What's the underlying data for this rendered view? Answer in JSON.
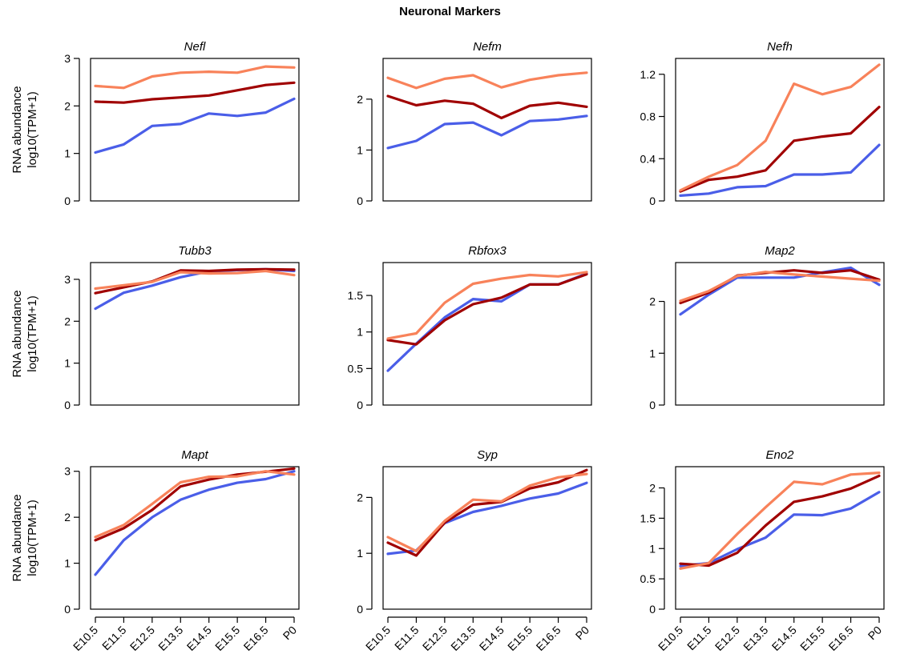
{
  "figure": {
    "title": "Neuronal Markers"
  },
  "colors": {
    "series_1": "#4a5ee8",
    "series_2": "#a00000",
    "series_3": "#f8825a"
  },
  "chart_data": [
    {
      "type": "line",
      "title": "Nefl",
      "ylabel": [
        "RNA abundance",
        "log10(TPM+1)"
      ],
      "xlabel": "",
      "categories": [
        "E10.5",
        "E11.5",
        "E12.5",
        "E13.5",
        "E14.5",
        "E15.5",
        "E16.5",
        "P0"
      ],
      "show_x_ticks": false,
      "ylim": [
        0,
        3.0
      ],
      "yticks": [
        0,
        1,
        2,
        3
      ],
      "ytick_labels": [
        "0",
        "1",
        "2",
        "3"
      ],
      "series": [
        {
          "color": "#4a5ee8",
          "values": [
            1.02,
            1.19,
            1.58,
            1.62,
            1.84,
            1.79,
            1.86,
            2.15
          ]
        },
        {
          "color": "#a00000",
          "values": [
            2.09,
            2.07,
            2.14,
            2.18,
            2.22,
            2.33,
            2.44,
            2.49
          ]
        },
        {
          "color": "#f8825a",
          "values": [
            2.42,
            2.38,
            2.62,
            2.7,
            2.72,
            2.7,
            2.83,
            2.81
          ]
        }
      ]
    },
    {
      "type": "line",
      "title": "Nefm",
      "ylabel": [],
      "xlabel": "",
      "categories": [
        "E10.5",
        "E11.5",
        "E12.5",
        "E13.5",
        "E14.5",
        "E15.5",
        "E16.5",
        "P0"
      ],
      "show_x_ticks": false,
      "ylim": [
        0,
        2.8
      ],
      "yticks": [
        0,
        1,
        2
      ],
      "ytick_labels": [
        "0",
        "1",
        "2"
      ],
      "series": [
        {
          "color": "#4a5ee8",
          "values": [
            1.04,
            1.18,
            1.51,
            1.54,
            1.29,
            1.57,
            1.6,
            1.67
          ]
        },
        {
          "color": "#a00000",
          "values": [
            2.06,
            1.88,
            1.97,
            1.91,
            1.63,
            1.87,
            1.93,
            1.85
          ]
        },
        {
          "color": "#f8825a",
          "values": [
            2.42,
            2.22,
            2.4,
            2.47,
            2.23,
            2.38,
            2.47,
            2.52
          ]
        }
      ]
    },
    {
      "type": "line",
      "title": "Nefh",
      "ylabel": [],
      "xlabel": "",
      "categories": [
        "E10.5",
        "E11.5",
        "E12.5",
        "E13.5",
        "E14.5",
        "E15.5",
        "E16.5",
        "P0"
      ],
      "show_x_ticks": false,
      "ylim": [
        0,
        1.35
      ],
      "yticks": [
        0,
        0.4,
        0.8,
        1.2
      ],
      "ytick_labels": [
        "0",
        "0.4",
        "0.8",
        "1.2"
      ],
      "series": [
        {
          "color": "#4a5ee8",
          "values": [
            0.05,
            0.07,
            0.13,
            0.14,
            0.25,
            0.25,
            0.27,
            0.53
          ]
        },
        {
          "color": "#a00000",
          "values": [
            0.09,
            0.2,
            0.23,
            0.29,
            0.57,
            0.61,
            0.64,
            0.89
          ]
        },
        {
          "color": "#f8825a",
          "values": [
            0.1,
            0.23,
            0.34,
            0.57,
            1.11,
            1.01,
            1.08,
            1.29
          ]
        }
      ]
    },
    {
      "type": "line",
      "title": "Tubb3",
      "ylabel": [
        "RNA abundance",
        "log10(TPM+1)"
      ],
      "xlabel": "",
      "categories": [
        "E10.5",
        "E11.5",
        "E12.5",
        "E13.5",
        "E14.5",
        "E15.5",
        "E16.5",
        "P0"
      ],
      "show_x_ticks": false,
      "ylim": [
        0,
        3.4
      ],
      "yticks": [
        0,
        1,
        2,
        3
      ],
      "ytick_labels": [
        "0",
        "1",
        "2",
        "3"
      ],
      "series": [
        {
          "color": "#4a5ee8",
          "values": [
            2.3,
            2.68,
            2.85,
            3.05,
            3.19,
            3.22,
            3.24,
            3.2
          ]
        },
        {
          "color": "#a00000",
          "values": [
            2.67,
            2.81,
            2.95,
            3.21,
            3.2,
            3.23,
            3.24,
            3.23
          ]
        },
        {
          "color": "#f8825a",
          "values": [
            2.78,
            2.86,
            2.94,
            3.17,
            3.14,
            3.15,
            3.2,
            3.1
          ]
        }
      ]
    },
    {
      "type": "line",
      "title": "Rbfox3",
      "ylabel": [],
      "xlabel": "",
      "categories": [
        "E10.5",
        "E11.5",
        "E12.5",
        "E13.5",
        "E14.5",
        "E15.5",
        "E16.5",
        "P0"
      ],
      "show_x_ticks": false,
      "ylim": [
        0,
        1.95
      ],
      "yticks": [
        0,
        0.5,
        1,
        1.5
      ],
      "ytick_labels": [
        "0",
        "0.5",
        "1",
        "1.5"
      ],
      "series": [
        {
          "color": "#4a5ee8",
          "values": [
            0.47,
            0.84,
            1.2,
            1.45,
            1.42,
            1.65,
            1.65,
            1.8
          ]
        },
        {
          "color": "#a00000",
          "values": [
            0.89,
            0.83,
            1.16,
            1.38,
            1.47,
            1.65,
            1.65,
            1.79
          ]
        },
        {
          "color": "#f8825a",
          "values": [
            0.91,
            0.98,
            1.4,
            1.66,
            1.73,
            1.78,
            1.76,
            1.82
          ]
        }
      ]
    },
    {
      "type": "line",
      "title": "Map2",
      "ylabel": [],
      "xlabel": "",
      "categories": [
        "E10.5",
        "E11.5",
        "E12.5",
        "E13.5",
        "E14.5",
        "E15.5",
        "E16.5",
        "P0"
      ],
      "show_x_ticks": false,
      "ylim": [
        0,
        2.75
      ],
      "yticks": [
        0,
        1,
        2
      ],
      "ytick_labels": [
        "0",
        "1",
        "2"
      ],
      "series": [
        {
          "color": "#4a5ee8",
          "values": [
            1.75,
            2.13,
            2.46,
            2.46,
            2.46,
            2.56,
            2.65,
            2.32
          ]
        },
        {
          "color": "#a00000",
          "values": [
            1.97,
            2.17,
            2.5,
            2.55,
            2.6,
            2.55,
            2.6,
            2.42
          ]
        },
        {
          "color": "#f8825a",
          "values": [
            2.01,
            2.2,
            2.49,
            2.57,
            2.52,
            2.48,
            2.44,
            2.4
          ]
        }
      ]
    },
    {
      "type": "line",
      "title": "Mapt",
      "ylabel": [
        "RNA abundance",
        "log10(TPM+1)"
      ],
      "xlabel": "",
      "categories": [
        "E10.5",
        "E11.5",
        "E12.5",
        "E13.5",
        "E14.5",
        "E15.5",
        "E16.5",
        "P0"
      ],
      "show_x_ticks": true,
      "ylim": [
        0,
        3.1
      ],
      "yticks": [
        0,
        1,
        2,
        3
      ],
      "ytick_labels": [
        "0",
        "1",
        "2",
        "3"
      ],
      "series": [
        {
          "color": "#4a5ee8",
          "values": [
            0.75,
            1.5,
            2.0,
            2.38,
            2.6,
            2.75,
            2.83,
            3.0
          ]
        },
        {
          "color": "#a00000",
          "values": [
            1.5,
            1.76,
            2.16,
            2.67,
            2.82,
            2.93,
            2.99,
            3.06
          ]
        },
        {
          "color": "#f8825a",
          "values": [
            1.57,
            1.83,
            2.29,
            2.76,
            2.88,
            2.89,
            3.0,
            2.93
          ]
        }
      ]
    },
    {
      "type": "line",
      "title": "Syp",
      "ylabel": [],
      "xlabel": "",
      "categories": [
        "E10.5",
        "E11.5",
        "E12.5",
        "E13.5",
        "E14.5",
        "E15.5",
        "E16.5",
        "P0"
      ],
      "show_x_ticks": true,
      "ylim": [
        0,
        2.55
      ],
      "yticks": [
        0,
        1,
        2
      ],
      "ytick_labels": [
        "0",
        "1",
        "2"
      ],
      "series": [
        {
          "color": "#4a5ee8",
          "values": [
            0.99,
            1.05,
            1.54,
            1.74,
            1.85,
            1.98,
            2.07,
            2.26
          ]
        },
        {
          "color": "#a00000",
          "values": [
            1.19,
            0.96,
            1.55,
            1.87,
            1.92,
            2.16,
            2.27,
            2.49
          ]
        },
        {
          "color": "#f8825a",
          "values": [
            1.29,
            1.04,
            1.58,
            1.96,
            1.93,
            2.21,
            2.36,
            2.42
          ]
        }
      ]
    },
    {
      "type": "line",
      "title": "Eno2",
      "ylabel": [],
      "xlabel": "",
      "categories": [
        "E10.5",
        "E11.5",
        "E12.5",
        "E13.5",
        "E14.5",
        "E15.5",
        "E16.5",
        "P0"
      ],
      "show_x_ticks": true,
      "ylim": [
        0,
        2.35
      ],
      "yticks": [
        0,
        0.5,
        1,
        1.5,
        2
      ],
      "ytick_labels": [
        "0",
        "0.5",
        "1",
        "1.5",
        "2"
      ],
      "series": [
        {
          "color": "#4a5ee8",
          "values": [
            0.71,
            0.76,
            0.99,
            1.18,
            1.56,
            1.55,
            1.66,
            1.93
          ]
        },
        {
          "color": "#a00000",
          "values": [
            0.75,
            0.72,
            0.93,
            1.38,
            1.77,
            1.86,
            1.99,
            2.2
          ]
        },
        {
          "color": "#f8825a",
          "values": [
            0.67,
            0.76,
            1.24,
            1.68,
            2.1,
            2.06,
            2.22,
            2.25
          ]
        }
      ]
    }
  ]
}
